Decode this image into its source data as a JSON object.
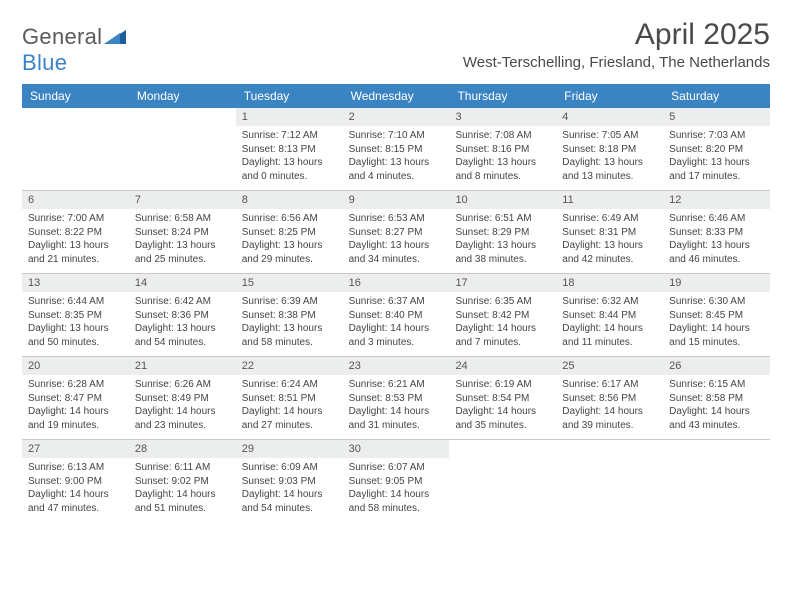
{
  "brand": {
    "text_a": "General",
    "text_b": "Blue"
  },
  "title": "April 2025",
  "location": "West-Terschelling, Friesland, The Netherlands",
  "colors": {
    "header_bg": "#3a84c4",
    "header_text": "#ffffff",
    "daynum_bg": "#eceded",
    "border": "#c9c9c9",
    "brand_gray": "#5a5a5a",
    "brand_blue": "#3a84c4"
  },
  "daysOfWeek": [
    "Sunday",
    "Monday",
    "Tuesday",
    "Wednesday",
    "Thursday",
    "Friday",
    "Saturday"
  ],
  "firstDayIndex": 2,
  "daysInMonth": 30,
  "cells": {
    "1": {
      "sunrise": "7:12 AM",
      "sunset": "8:13 PM",
      "daylight": "13 hours and 0 minutes."
    },
    "2": {
      "sunrise": "7:10 AM",
      "sunset": "8:15 PM",
      "daylight": "13 hours and 4 minutes."
    },
    "3": {
      "sunrise": "7:08 AM",
      "sunset": "8:16 PM",
      "daylight": "13 hours and 8 minutes."
    },
    "4": {
      "sunrise": "7:05 AM",
      "sunset": "8:18 PM",
      "daylight": "13 hours and 13 minutes."
    },
    "5": {
      "sunrise": "7:03 AM",
      "sunset": "8:20 PM",
      "daylight": "13 hours and 17 minutes."
    },
    "6": {
      "sunrise": "7:00 AM",
      "sunset": "8:22 PM",
      "daylight": "13 hours and 21 minutes."
    },
    "7": {
      "sunrise": "6:58 AM",
      "sunset": "8:24 PM",
      "daylight": "13 hours and 25 minutes."
    },
    "8": {
      "sunrise": "6:56 AM",
      "sunset": "8:25 PM",
      "daylight": "13 hours and 29 minutes."
    },
    "9": {
      "sunrise": "6:53 AM",
      "sunset": "8:27 PM",
      "daylight": "13 hours and 34 minutes."
    },
    "10": {
      "sunrise": "6:51 AM",
      "sunset": "8:29 PM",
      "daylight": "13 hours and 38 minutes."
    },
    "11": {
      "sunrise": "6:49 AM",
      "sunset": "8:31 PM",
      "daylight": "13 hours and 42 minutes."
    },
    "12": {
      "sunrise": "6:46 AM",
      "sunset": "8:33 PM",
      "daylight": "13 hours and 46 minutes."
    },
    "13": {
      "sunrise": "6:44 AM",
      "sunset": "8:35 PM",
      "daylight": "13 hours and 50 minutes."
    },
    "14": {
      "sunrise": "6:42 AM",
      "sunset": "8:36 PM",
      "daylight": "13 hours and 54 minutes."
    },
    "15": {
      "sunrise": "6:39 AM",
      "sunset": "8:38 PM",
      "daylight": "13 hours and 58 minutes."
    },
    "16": {
      "sunrise": "6:37 AM",
      "sunset": "8:40 PM",
      "daylight": "14 hours and 3 minutes."
    },
    "17": {
      "sunrise": "6:35 AM",
      "sunset": "8:42 PM",
      "daylight": "14 hours and 7 minutes."
    },
    "18": {
      "sunrise": "6:32 AM",
      "sunset": "8:44 PM",
      "daylight": "14 hours and 11 minutes."
    },
    "19": {
      "sunrise": "6:30 AM",
      "sunset": "8:45 PM",
      "daylight": "14 hours and 15 minutes."
    },
    "20": {
      "sunrise": "6:28 AM",
      "sunset": "8:47 PM",
      "daylight": "14 hours and 19 minutes."
    },
    "21": {
      "sunrise": "6:26 AM",
      "sunset": "8:49 PM",
      "daylight": "14 hours and 23 minutes."
    },
    "22": {
      "sunrise": "6:24 AM",
      "sunset": "8:51 PM",
      "daylight": "14 hours and 27 minutes."
    },
    "23": {
      "sunrise": "6:21 AM",
      "sunset": "8:53 PM",
      "daylight": "14 hours and 31 minutes."
    },
    "24": {
      "sunrise": "6:19 AM",
      "sunset": "8:54 PM",
      "daylight": "14 hours and 35 minutes."
    },
    "25": {
      "sunrise": "6:17 AM",
      "sunset": "8:56 PM",
      "daylight": "14 hours and 39 minutes."
    },
    "26": {
      "sunrise": "6:15 AM",
      "sunset": "8:58 PM",
      "daylight": "14 hours and 43 minutes."
    },
    "27": {
      "sunrise": "6:13 AM",
      "sunset": "9:00 PM",
      "daylight": "14 hours and 47 minutes."
    },
    "28": {
      "sunrise": "6:11 AM",
      "sunset": "9:02 PM",
      "daylight": "14 hours and 51 minutes."
    },
    "29": {
      "sunrise": "6:09 AM",
      "sunset": "9:03 PM",
      "daylight": "14 hours and 54 minutes."
    },
    "30": {
      "sunrise": "6:07 AM",
      "sunset": "9:05 PM",
      "daylight": "14 hours and 58 minutes."
    }
  },
  "labels": {
    "sunrise_prefix": "Sunrise: ",
    "sunset_prefix": "Sunset: ",
    "daylight_prefix": "Daylight: "
  }
}
